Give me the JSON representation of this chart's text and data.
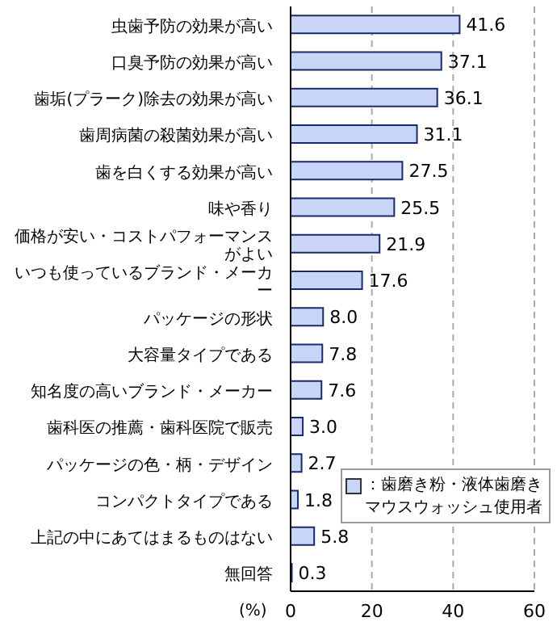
{
  "chart_data": {
    "type": "bar",
    "orientation": "horizontal",
    "categories": [
      "虫歯予防の効果が高い",
      "口臭予防の効果が高い",
      "歯垢(プラーク)除去の効果が高い",
      "歯周病菌の殺菌効果が高い",
      "歯を白くする効果が高い",
      "味や香り",
      "価格が安い・コストパフォーマンスがよい",
      "いつも使っているブランド・メーカー",
      "パッケージの形状",
      "大容量タイプである",
      "知名度の高いブランド・メーカー",
      "歯科医の推薦・歯科医院で販売",
      "パッケージの色・柄・デザイン",
      "コンパクトタイプである",
      "上記の中にあてはまるものはない",
      "無回答"
    ],
    "series": [
      {
        "name": "：歯磨き粉・液体歯磨きマウスウォッシュ使用者",
        "color": "#c9d5f7",
        "values": [
          41.6,
          37.1,
          36.1,
          31.1,
          27.5,
          25.5,
          21.9,
          17.6,
          8.0,
          7.8,
          7.6,
          3.0,
          2.7,
          1.8,
          5.8,
          0.3
        ]
      }
    ],
    "value_labels": [
      "41.6",
      "37.1",
      "36.1",
      "31.1",
      "27.5",
      "25.5",
      "21.9",
      "17.6",
      "8.0",
      "7.8",
      "7.6",
      "3.0",
      "2.7",
      "1.8",
      "5.8",
      "0.3"
    ],
    "xlim": [
      0,
      60
    ],
    "xticks": [
      0,
      20,
      40,
      60
    ],
    "xlabel": "(%)",
    "grid": "x",
    "legend": "bottom right"
  }
}
